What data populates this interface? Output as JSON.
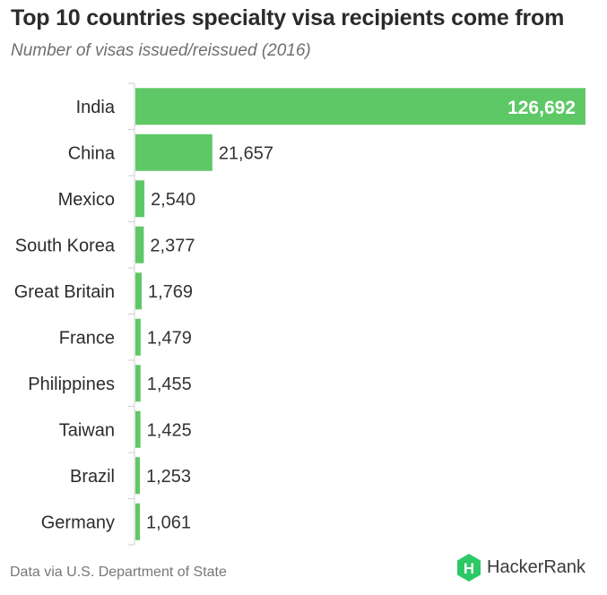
{
  "chart_data": {
    "type": "bar",
    "orientation": "horizontal",
    "title": "Top 10 countries specialty visa recipients come from",
    "subtitle": "Number of visas issued/reissued (2016)",
    "categories": [
      "India",
      "China",
      "Mexico",
      "South Korea",
      "Great Britain",
      "France",
      "Philippines",
      "Taiwan",
      "Brazil",
      "Germany"
    ],
    "values": [
      126692,
      21657,
      2540,
      2377,
      1769,
      1479,
      1455,
      1425,
      1253,
      1061
    ],
    "data_labels": [
      "126,692",
      "21,657",
      "2,540",
      "2,377",
      "1,769",
      "1,479",
      "1,455",
      "1,425",
      "1,253",
      "1,061"
    ],
    "xlim": [
      0,
      126692
    ],
    "grid": false,
    "bar_color": "#5ec866",
    "inside_label_color": "#ffffff",
    "outside_label_color": "#333333"
  },
  "footer": {
    "source": "Data via U.S. Department of State"
  },
  "brand": {
    "name": "HackerRank",
    "logo_letter": "H",
    "logo_color": "#2ec866"
  }
}
